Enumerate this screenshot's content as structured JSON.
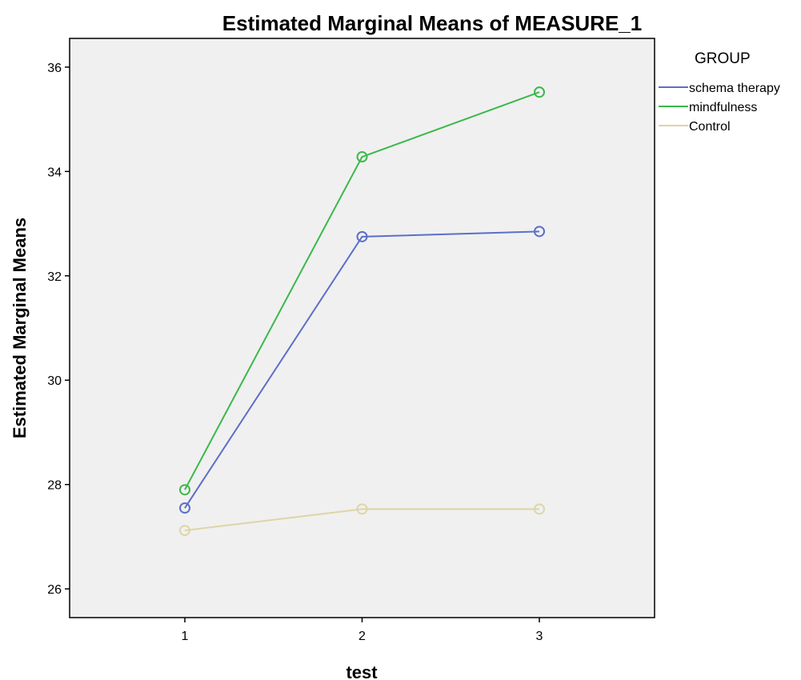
{
  "chart_data": {
    "type": "line",
    "title": "Estimated Marginal Means of MEASURE_1",
    "xlabel": "test",
    "ylabel": "Estimated Marginal Means",
    "categories": [
      "1",
      "2",
      "3"
    ],
    "x_range": [
      0.35,
      3.65
    ],
    "ylim": [
      25.45,
      36.55
    ],
    "yticks": [
      26,
      28,
      30,
      32,
      34,
      36
    ],
    "grid": false,
    "legend": {
      "title": "GROUP",
      "position": "top-right outside"
    },
    "plot_background": "#f0f0f0",
    "series": [
      {
        "name": "schema therapy",
        "color": "#5b6fc8",
        "values": [
          27.55,
          32.75,
          32.85
        ]
      },
      {
        "name": "mindfulness",
        "color": "#3cb84a",
        "values": [
          27.9,
          34.28,
          35.52
        ]
      },
      {
        "name": "Control",
        "color": "#ddd5a6",
        "values": [
          27.12,
          27.53,
          27.53
        ]
      }
    ]
  }
}
